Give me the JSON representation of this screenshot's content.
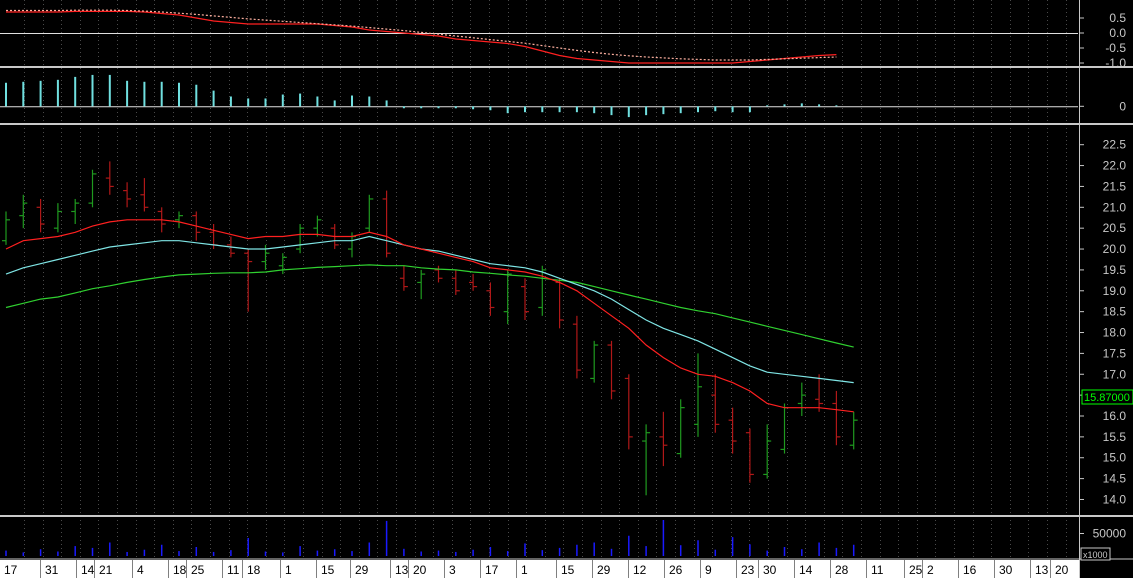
{
  "colors": {
    "background": "#000000",
    "separator": "#c8c8c8",
    "up_bar": "#1f9a1f",
    "down_bar": "#b01818",
    "ma_fast": "#ff2020",
    "ma_mid": "#7fe5e5",
    "ma_slow": "#30d030",
    "osc_bars": "#70e0e0",
    "volume": "#1a1aff",
    "price_tag": "#00ff00",
    "axis_text": "#c8c8c8"
  },
  "chart_data": [
    {
      "id": "oscillator",
      "type": "line",
      "yticks": [
        "0.5",
        "0.0",
        "-0.5",
        "-1.0"
      ],
      "ylim": [
        -1.1,
        0.9
      ],
      "series": [
        {
          "style": "solid",
          "color": "#ff2020",
          "values": [
            0.7,
            0.7,
            0.7,
            0.7,
            0.72,
            0.72,
            0.72,
            0.72,
            0.7,
            0.65,
            0.6,
            0.5,
            0.4,
            0.35,
            0.3,
            0.3,
            0.3,
            0.3,
            0.3,
            0.25,
            0.2,
            0.1,
            0.05,
            0.0,
            -0.05,
            -0.1,
            -0.2,
            -0.25,
            -0.3,
            -0.35,
            -0.45,
            -0.6,
            -0.75,
            -0.85,
            -0.9,
            -0.95,
            -1.0,
            -1.0,
            -1.0,
            -1.0,
            -1.0,
            -1.0,
            -1.0,
            -0.95,
            -0.9,
            -0.85,
            -0.8,
            -0.75,
            -0.72
          ]
        },
        {
          "style": "dotted",
          "color": "#ffb0a0",
          "values": [
            0.75,
            0.75,
            0.75,
            0.75,
            0.76,
            0.76,
            0.76,
            0.75,
            0.73,
            0.7,
            0.66,
            0.62,
            0.57,
            0.52,
            0.47,
            0.43,
            0.39,
            0.35,
            0.31,
            0.27,
            0.23,
            0.18,
            0.13,
            0.08,
            0.02,
            -0.04,
            -0.1,
            -0.16,
            -0.22,
            -0.28,
            -0.34,
            -0.42,
            -0.5,
            -0.58,
            -0.65,
            -0.71,
            -0.76,
            -0.8,
            -0.83,
            -0.86,
            -0.88,
            -0.9,
            -0.9,
            -0.9,
            -0.88,
            -0.86,
            -0.84,
            -0.82,
            -0.8
          ]
        }
      ]
    },
    {
      "id": "histogram",
      "type": "bar",
      "yticks": [
        "0"
      ],
      "ylim": [
        -0.8,
        1.8
      ],
      "values": [
        1.2,
        1.25,
        1.3,
        1.35,
        1.5,
        1.6,
        1.6,
        1.3,
        1.25,
        1.25,
        1.2,
        1.1,
        0.8,
        0.5,
        0.4,
        0.4,
        0.6,
        0.65,
        0.5,
        0.3,
        0.55,
        0.5,
        0.3,
        -0.1,
        -0.1,
        -0.1,
        -0.1,
        -0.15,
        -0.2,
        -0.35,
        -0.3,
        -0.3,
        -0.3,
        -0.3,
        -0.35,
        -0.45,
        -0.55,
        -0.45,
        -0.4,
        -0.35,
        -0.3,
        -0.25,
        -0.3,
        -0.3,
        0.05,
        0.1,
        0.15,
        0.1,
        0.05
      ]
    },
    {
      "id": "price",
      "type": "ohlc",
      "yticks": [
        "22.5",
        "22.0",
        "21.5",
        "21.0",
        "20.5",
        "20.0",
        "19.5",
        "19.0",
        "18.5",
        "18.0",
        "17.5",
        "17.0",
        "16.5",
        "16.0",
        "15.5",
        "15.0",
        "14.5",
        "14.0"
      ],
      "ylim": [
        13.7,
        22.9
      ],
      "last_price": "15.87000",
      "ohlc": [
        [
          20.2,
          20.9,
          20.1,
          20.7
        ],
        [
          20.8,
          21.3,
          20.5,
          21.1
        ],
        [
          21.0,
          21.2,
          20.4,
          20.6
        ],
        [
          20.5,
          21.1,
          20.4,
          20.9
        ],
        [
          20.9,
          21.2,
          20.6,
          21.1
        ],
        [
          21.1,
          21.9,
          21.0,
          21.8
        ],
        [
          21.7,
          22.1,
          21.3,
          21.5
        ],
        [
          21.4,
          21.6,
          21.0,
          21.2
        ],
        [
          21.3,
          21.7,
          20.9,
          21.0
        ],
        [
          20.9,
          21.0,
          20.4,
          20.6
        ],
        [
          20.7,
          20.9,
          20.5,
          20.8
        ],
        [
          20.8,
          20.9,
          20.2,
          20.4
        ],
        [
          20.4,
          20.6,
          20.0,
          20.1
        ],
        [
          20.1,
          20.3,
          19.8,
          19.9
        ],
        [
          19.9,
          20.0,
          18.5,
          19.7
        ],
        [
          19.7,
          20.1,
          19.5,
          19.9
        ],
        [
          19.6,
          19.9,
          19.4,
          19.8
        ],
        [
          20.0,
          20.6,
          19.9,
          20.5
        ],
        [
          20.5,
          20.8,
          20.3,
          20.7
        ],
        [
          20.5,
          20.6,
          20.0,
          20.1
        ],
        [
          20.0,
          20.4,
          19.8,
          20.3
        ],
        [
          20.5,
          21.3,
          20.4,
          21.2
        ],
        [
          21.2,
          21.4,
          19.8,
          19.9
        ],
        [
          19.3,
          19.6,
          19.0,
          19.1
        ],
        [
          19.2,
          19.5,
          18.8,
          19.4
        ],
        [
          19.5,
          19.6,
          19.2,
          19.3
        ],
        [
          19.3,
          19.5,
          18.9,
          19.0
        ],
        [
          19.2,
          19.4,
          19.0,
          19.1
        ],
        [
          19.0,
          19.2,
          18.4,
          18.6
        ],
        [
          18.5,
          19.5,
          18.2,
          19.4
        ],
        [
          19.1,
          19.3,
          18.3,
          18.5
        ],
        [
          18.6,
          19.6,
          18.4,
          19.5
        ],
        [
          19.2,
          19.3,
          18.1,
          18.3
        ],
        [
          18.2,
          18.4,
          16.9,
          17.1
        ],
        [
          16.9,
          17.8,
          16.8,
          17.7
        ],
        [
          17.7,
          17.8,
          16.4,
          16.6
        ],
        [
          16.9,
          17.0,
          15.2,
          15.5
        ],
        [
          15.4,
          15.8,
          14.1,
          15.6
        ],
        [
          15.5,
          16.1,
          14.8,
          15.3
        ],
        [
          15.1,
          16.4,
          15.0,
          16.2
        ],
        [
          15.8,
          17.5,
          15.5,
          16.7
        ],
        [
          16.5,
          17.0,
          15.6,
          15.8
        ],
        [
          15.9,
          16.2,
          15.1,
          15.4
        ],
        [
          15.6,
          15.7,
          14.4,
          14.6
        ],
        [
          14.6,
          15.8,
          14.5,
          15.4
        ],
        [
          15.2,
          16.3,
          15.1,
          16.2
        ],
        [
          16.3,
          16.8,
          16.0,
          16.5
        ],
        [
          16.4,
          17.0,
          16.1,
          16.3
        ],
        [
          16.3,
          16.6,
          15.3,
          15.5
        ],
        [
          15.3,
          16.1,
          15.2,
          15.9
        ]
      ],
      "ma_fast": [
        20.0,
        20.2,
        20.25,
        20.3,
        20.4,
        20.55,
        20.65,
        20.7,
        20.7,
        20.7,
        20.65,
        20.55,
        20.45,
        20.35,
        20.25,
        20.3,
        20.3,
        20.35,
        20.35,
        20.3,
        20.3,
        20.4,
        20.3,
        20.1,
        20.0,
        19.9,
        19.8,
        19.7,
        19.55,
        19.5,
        19.45,
        19.35,
        19.2,
        19.0,
        18.7,
        18.4,
        18.1,
        17.7,
        17.4,
        17.15,
        17.0,
        16.95,
        16.8,
        16.6,
        16.3,
        16.2,
        16.2,
        16.2,
        16.15,
        16.1
      ],
      "ma_mid": [
        19.4,
        19.55,
        19.65,
        19.75,
        19.85,
        19.95,
        20.05,
        20.1,
        20.15,
        20.2,
        20.2,
        20.15,
        20.1,
        20.05,
        20.0,
        20.0,
        20.05,
        20.1,
        20.15,
        20.2,
        20.2,
        20.3,
        20.2,
        20.1,
        20.0,
        19.95,
        19.85,
        19.75,
        19.65,
        19.6,
        19.55,
        19.45,
        19.3,
        19.15,
        19.0,
        18.8,
        18.55,
        18.3,
        18.1,
        17.95,
        17.8,
        17.6,
        17.4,
        17.2,
        17.05,
        17.0,
        16.95,
        16.9,
        16.85,
        16.8
      ],
      "ma_slow": [
        18.6,
        18.7,
        18.8,
        18.85,
        18.95,
        19.05,
        19.12,
        19.2,
        19.27,
        19.33,
        19.38,
        19.4,
        19.42,
        19.43,
        19.43,
        19.45,
        19.5,
        19.53,
        19.56,
        19.58,
        19.6,
        19.62,
        19.6,
        19.6,
        19.55,
        19.52,
        19.5,
        19.45,
        19.42,
        19.38,
        19.35,
        19.3,
        19.25,
        19.2,
        19.1,
        19.0,
        18.9,
        18.8,
        18.7,
        18.6,
        18.52,
        18.45,
        18.35,
        18.25,
        18.15,
        18.05,
        17.95,
        17.85,
        17.75,
        17.65
      ]
    },
    {
      "id": "volume",
      "type": "bar",
      "yticks": [
        "50000"
      ],
      "multiplier_label": "x1000",
      "ylim": [
        0,
        80000
      ],
      "values": [
        12000,
        8000,
        15000,
        10000,
        22000,
        18000,
        30000,
        9000,
        14000,
        25000,
        11000,
        20000,
        9000,
        13000,
        40000,
        10000,
        8000,
        22000,
        12000,
        15000,
        11000,
        30000,
        78000,
        16000,
        10000,
        12000,
        9000,
        14000,
        20000,
        11000,
        28000,
        13000,
        18000,
        25000,
        30000,
        16000,
        45000,
        22000,
        80000,
        24000,
        35000,
        14000,
        42000,
        26000,
        12000,
        20000,
        15000,
        30000,
        18000,
        25000
      ]
    }
  ],
  "x_axis": {
    "labels": [
      "17",
      "31",
      "14",
      "21",
      "4",
      "18",
      "25",
      "11",
      "18",
      "1",
      "15",
      "29",
      "13",
      "20",
      "3",
      "17",
      "1",
      "15",
      "29",
      "12",
      "26",
      "9",
      "23",
      "30",
      "14",
      "28",
      "11",
      "25",
      "2",
      "16",
      "30",
      "13",
      "20"
    ]
  }
}
